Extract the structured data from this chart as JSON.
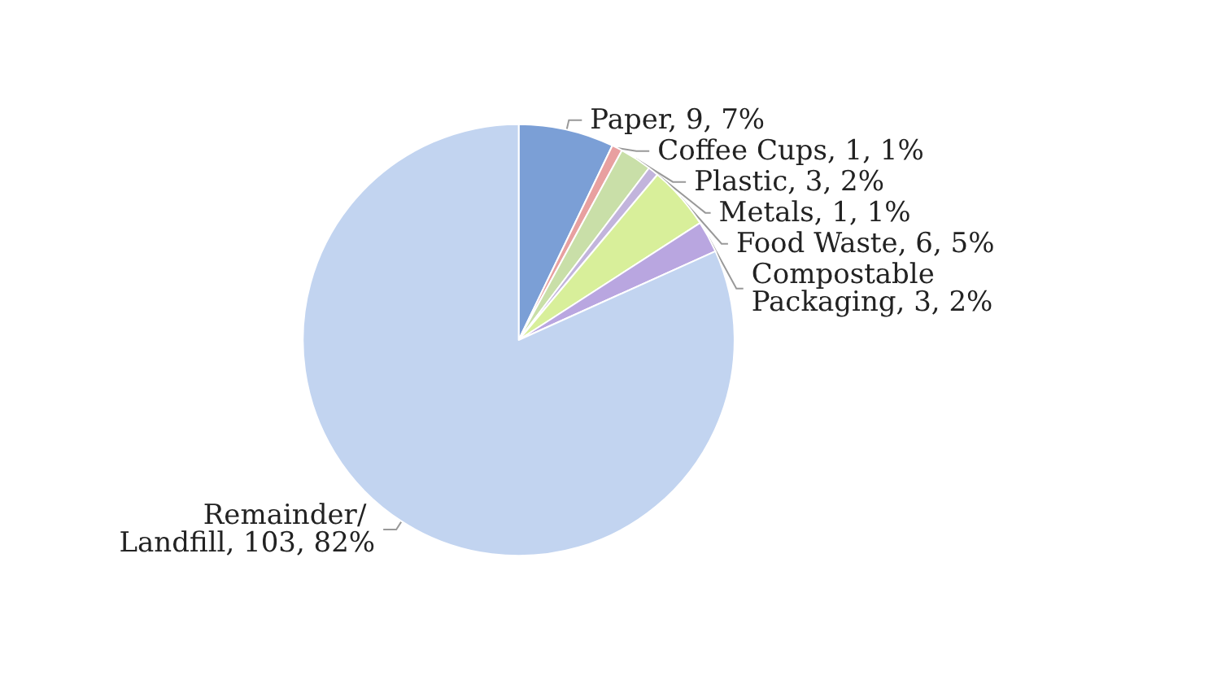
{
  "chart_data": {
    "type": "pie",
    "categories": [
      "Paper",
      "Coffee Cups",
      "Plastic",
      "Metals",
      "Food Waste",
      "Compostable Packaging",
      "Remainder/ Landfill"
    ],
    "values": [
      9,
      1,
      3,
      1,
      6,
      3,
      103
    ],
    "value_labels": [
      "9, 7%",
      "1, 1%",
      "3, 2%",
      "1, 1%",
      "6, 5%",
      "3, 2%",
      "103, 82%"
    ],
    "colors": [
      "#7b9fd6",
      "#e8a0a0",
      "#c9dfa8",
      "#c2b4dc",
      "#d8ef9a",
      "#b9a6e0",
      "#c2d4f0"
    ]
  }
}
